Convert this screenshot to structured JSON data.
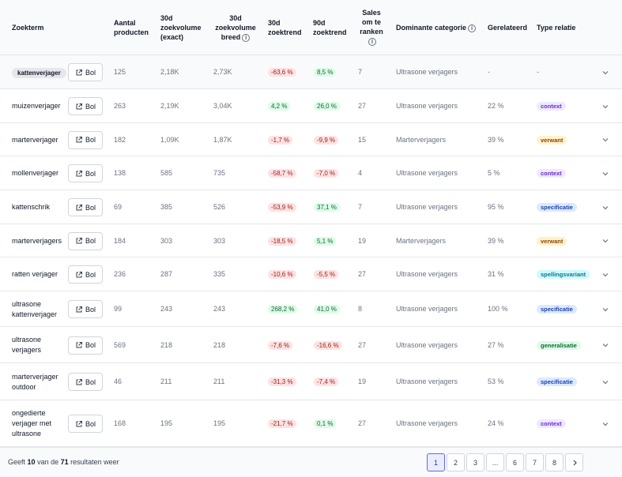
{
  "headers": {
    "zoekterm": "Zoekterm",
    "aantal": [
      "Aantal",
      "producten"
    ],
    "vol_exact": [
      "30d",
      "zoekvolume",
      "(exact)"
    ],
    "vol_breed": [
      "30d",
      "zoekvolume",
      "breed"
    ],
    "trend30": [
      "30d",
      "zoektrend"
    ],
    "trend90": [
      "90d",
      "zoektrend"
    ],
    "sales": [
      "Sales",
      "om te",
      "ranken"
    ],
    "categorie": "Dominante categorie",
    "gerelateerd": "Gerelateerd",
    "type": "Type relatie"
  },
  "button_label": "Bol",
  "rows": [
    {
      "term": [
        "kattenverjager"
      ],
      "chip": true,
      "aantal": "125",
      "exact": "2,18K",
      "breed": "2,73K",
      "t30": "-63,6 %",
      "t30_dir": "neg",
      "t90": "8,5 %",
      "t90_dir": "pos",
      "sales": "7",
      "cat": "Ultrasone verjagers",
      "gerel": "-",
      "type": "-",
      "type_kind": "none"
    },
    {
      "term": [
        "muizenverjager"
      ],
      "aantal": "263",
      "exact": "2,19K",
      "breed": "3,04K",
      "t30": "4,2 %",
      "t30_dir": "pos",
      "t90": "26,0 %",
      "t90_dir": "pos",
      "sales": "27",
      "cat": "Ultrasone verjagers",
      "gerel": "22 %",
      "type": "context",
      "type_kind": "context"
    },
    {
      "term": [
        "marterverjager"
      ],
      "aantal": "182",
      "exact": "1,09K",
      "breed": "1,87K",
      "t30": "-1,7 %",
      "t30_dir": "neg",
      "t90": "-9,9 %",
      "t90_dir": "neg",
      "sales": "15",
      "cat": "Marterverjagers",
      "gerel": "39 %",
      "type": "verwant",
      "type_kind": "verwant"
    },
    {
      "term": [
        "mollenverjager"
      ],
      "aantal": "138",
      "exact": "585",
      "breed": "735",
      "t30": "-58,7 %",
      "t30_dir": "neg",
      "t90": "-7,0 %",
      "t90_dir": "neg",
      "sales": "4",
      "cat": "Ultrasone verjagers",
      "gerel": "5 %",
      "type": "context",
      "type_kind": "context"
    },
    {
      "term": [
        "kattenschrik"
      ],
      "aantal": "69",
      "exact": "385",
      "breed": "526",
      "t30": "-53,9 %",
      "t30_dir": "neg",
      "t90": "37,1 %",
      "t90_dir": "pos",
      "sales": "7",
      "cat": "Ultrasone verjagers",
      "gerel": "95 %",
      "type": "specificatie",
      "type_kind": "specificatie"
    },
    {
      "term": [
        "marterverjagers"
      ],
      "aantal": "184",
      "exact": "303",
      "breed": "303",
      "t30": "-18,5 %",
      "t30_dir": "neg",
      "t90": "5,1 %",
      "t90_dir": "pos",
      "sales": "19",
      "cat": "Marterverjagers",
      "gerel": "39 %",
      "type": "verwant",
      "type_kind": "verwant"
    },
    {
      "term": [
        "ratten verjager"
      ],
      "aantal": "236",
      "exact": "287",
      "breed": "335",
      "t30": "-10,6 %",
      "t30_dir": "neg",
      "t90": "-5,5 %",
      "t90_dir": "neg",
      "sales": "27",
      "cat": "Ultrasone verjagers",
      "gerel": "31 %",
      "type": "spellingsvariant",
      "type_kind": "spellingsvariant"
    },
    {
      "term": [
        "ultrasone",
        "kattenverjager"
      ],
      "aantal": "99",
      "exact": "243",
      "breed": "243",
      "t30": "268,2 %",
      "t30_dir": "pos",
      "t90": "41,0 %",
      "t90_dir": "pos",
      "sales": "8",
      "cat": "Ultrasone verjagers",
      "gerel": "100 %",
      "type": "specificatie",
      "type_kind": "specificatie"
    },
    {
      "term": [
        "ultrasone",
        "verjagers"
      ],
      "aantal": "569",
      "exact": "218",
      "breed": "218",
      "t30": "-7,6 %",
      "t30_dir": "neg",
      "t90": "-16,6 %",
      "t90_dir": "neg",
      "sales": "27",
      "cat": "Ultrasone verjagers",
      "gerel": "27 %",
      "type": "generalisatie",
      "type_kind": "generalisatie"
    },
    {
      "term": [
        "marterverjager",
        "outdoor"
      ],
      "aantal": "46",
      "exact": "211",
      "breed": "211",
      "t30": "-31,3 %",
      "t30_dir": "neg",
      "t90": "-7,4 %",
      "t90_dir": "neg",
      "sales": "19",
      "cat": "Ultrasone verjagers",
      "gerel": "53 %",
      "type": "specificatie",
      "type_kind": "specificatie"
    },
    {
      "term": [
        "ongedierte",
        "verjager met",
        "ultrasone"
      ],
      "aantal": "168",
      "exact": "195",
      "breed": "195",
      "t30": "-21,7 %",
      "t30_dir": "neg",
      "t90": "0,1 %",
      "t90_dir": "pos",
      "sales": "27",
      "cat": "Ultrasone verjagers",
      "gerel": "24 %",
      "type": "context",
      "type_kind": "context"
    }
  ],
  "footer": {
    "prefix": "Geeft",
    "shown": "10",
    "mid": "van de",
    "total": "71",
    "suffix": "resultaten weer"
  },
  "pagination": [
    "1",
    "2",
    "3",
    "...",
    "6",
    "7",
    "8"
  ],
  "colors": {
    "context": [
      "#ede9fe",
      "#6d28d9"
    ],
    "verwant": [
      "#fef3c7",
      "#92400e"
    ],
    "specificatie": [
      "#dbeafe",
      "#1e40af"
    ],
    "spellingsvariant": [
      "#cffafe",
      "#0e7490"
    ],
    "generalisatie": [
      "#dcfce7",
      "#166534"
    ]
  }
}
